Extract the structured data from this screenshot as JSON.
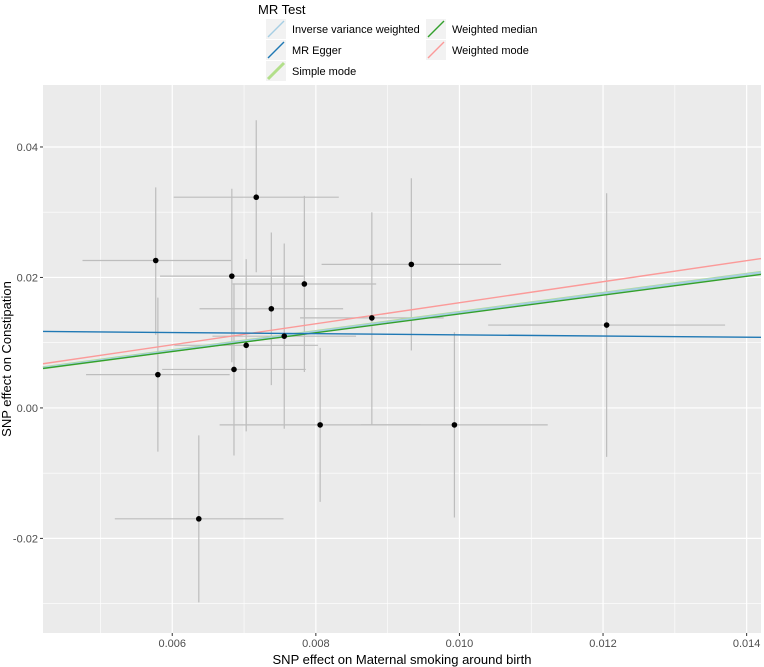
{
  "chart_data": {
    "type": "scatter",
    "xlabel": "SNP effect on Maternal smoking around birth",
    "ylabel": "SNP effect on Constipation",
    "xlim": [
      0.0042,
      0.0142
    ],
    "ylim": [
      -0.0345,
      0.0495
    ],
    "x_ticks": [
      0.006,
      0.008,
      0.01,
      0.012,
      0.014
    ],
    "x_tick_labels": [
      "0.006",
      "0.008",
      "0.010",
      "0.012",
      "0.014"
    ],
    "y_ticks": [
      -0.02,
      0.0,
      0.02,
      0.04
    ],
    "y_tick_labels": [
      "-0.02",
      "0.00",
      "0.02",
      "0.04"
    ],
    "grid": true,
    "points": [
      {
        "x": 0.00577,
        "y": 0.0226,
        "xlo": 0.00475,
        "xhi": 0.00682,
        "ylo": 0.0112,
        "yhi": 0.0338
      },
      {
        "x": 0.0058,
        "y": 0.0051,
        "xlo": 0.0048,
        "xhi": 0.0068,
        "ylo": -0.0067,
        "yhi": 0.0169
      },
      {
        "x": 0.00637,
        "y": -0.017,
        "xlo": 0.0052,
        "xhi": 0.00755,
        "ylo": -0.0298,
        "yhi": -0.0042
      },
      {
        "x": 0.00683,
        "y": 0.0202,
        "xlo": 0.00583,
        "xhi": 0.00783,
        "ylo": 0.007,
        "yhi": 0.0336
      },
      {
        "x": 0.00686,
        "y": 0.0059,
        "xlo": 0.00586,
        "xhi": 0.00786,
        "ylo": -0.0073,
        "yhi": 0.0191
      },
      {
        "x": 0.00703,
        "y": 0.0096,
        "xlo": 0.00603,
        "xhi": 0.00803,
        "ylo": -0.0036,
        "yhi": 0.0228
      },
      {
        "x": 0.00717,
        "y": 0.0323,
        "xlo": 0.00602,
        "xhi": 0.00832,
        "ylo": 0.0208,
        "yhi": 0.0441
      },
      {
        "x": 0.00738,
        "y": 0.0152,
        "xlo": 0.00638,
        "xhi": 0.00838,
        "ylo": 0.0035,
        "yhi": 0.0269
      },
      {
        "x": 0.00756,
        "y": 0.011,
        "xlo": 0.00656,
        "xhi": 0.00856,
        "ylo": -0.0032,
        "yhi": 0.0252
      },
      {
        "x": 0.00784,
        "y": 0.019,
        "xlo": 0.00684,
        "xhi": 0.00884,
        "ylo": 0.0055,
        "yhi": 0.0325
      },
      {
        "x": 0.00806,
        "y": -0.0026,
        "xlo": 0.00666,
        "xhi": 0.00946,
        "ylo": -0.0144,
        "yhi": 0.0092
      },
      {
        "x": 0.00878,
        "y": 0.0138,
        "xlo": 0.00778,
        "xhi": 0.00978,
        "ylo": -0.0026,
        "yhi": 0.03
      },
      {
        "x": 0.00933,
        "y": 0.022,
        "xlo": 0.00808,
        "xhi": 0.01058,
        "ylo": 0.0088,
        "yhi": 0.0352
      },
      {
        "x": 0.00993,
        "y": -0.0026,
        "xlo": 0.00863,
        "xhi": 0.01123,
        "ylo": -0.0168,
        "yhi": 0.0116
      },
      {
        "x": 0.01205,
        "y": 0.0127,
        "xlo": 0.0104,
        "xhi": 0.0137,
        "ylo": -0.0075,
        "yhi": 0.0329
      }
    ],
    "legend": {
      "title": "MR Test",
      "position": "top",
      "entries": [
        {
          "name": "Inverse variance weighted",
          "color": "#a6cee3"
        },
        {
          "name": "MR Egger",
          "color": "#1f78b4"
        },
        {
          "name": "Simple mode",
          "color": "#b2df8a"
        },
        {
          "name": "Weighted median",
          "color": "#33a02c"
        },
        {
          "name": "Weighted mode",
          "color": "#fb9a99"
        }
      ]
    },
    "series": [
      {
        "name": "Inverse variance weighted",
        "slope": 1.4628,
        "intercept": 0,
        "color": "#a6cee3"
      },
      {
        "name": "MR Egger",
        "slope": -0.09,
        "intercept": 0.0121,
        "color": "#1f78b4"
      },
      {
        "name": "Simple mode",
        "slope": 1.4628,
        "intercept": 0,
        "color": "#b2df8a"
      },
      {
        "name": "Weighted median",
        "slope": 1.4413,
        "intercept": 0,
        "color": "#33a02c"
      },
      {
        "name": "Weighted mode",
        "slope": 1.6124,
        "intercept": 0,
        "color": "#fb9a99"
      }
    ],
    "colors": {
      "panel": "#ebebeb",
      "gridline": "#ffffff",
      "errorbar": "#bdbdbd",
      "point": "#000000"
    }
  }
}
